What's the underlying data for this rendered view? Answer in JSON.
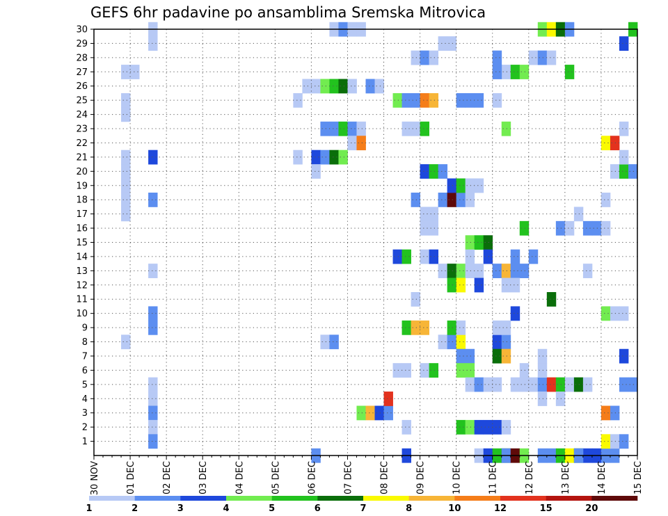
{
  "chart_data": {
    "type": "heatmap",
    "title": "GEFS 6hr padavine po ansamblima Sremska Mitrovica",
    "xlabel": "",
    "ylabel": "",
    "x_ticks": [
      "30 NOV",
      "01 DEC",
      "02 DEC",
      "03 DEC",
      "04 DEC",
      "05 DEC",
      "06 DEC",
      "07 DEC",
      "08 DEC",
      "09 DEC",
      "10 DEC",
      "11 DEC",
      "12 DEC",
      "13 DEC",
      "14 DEC",
      "15 DEC"
    ],
    "y_ticks": [
      "1",
      "2",
      "3",
      "4",
      "5",
      "6",
      "7",
      "8",
      "9",
      "10",
      "11",
      "12",
      "13",
      "14",
      "15",
      "16",
      "17",
      "18",
      "19",
      "20",
      "21",
      "22",
      "23",
      "24",
      "25",
      "26",
      "27",
      "28",
      "29",
      "30"
    ],
    "ylim": [
      0,
      30
    ],
    "xlim_days": [
      0,
      15
    ],
    "steps_per_day": 4,
    "color_levels": [
      "1",
      "2",
      "3",
      "4",
      "5",
      "6",
      "7",
      "8",
      "10",
      "12",
      "15",
      "20"
    ],
    "colors": [
      "#b7c9f5",
      "#5c8ef0",
      "#1e48dc",
      "#72ec50",
      "#22c21e",
      "#0a6e0a",
      "#fafa00",
      "#f7b537",
      "#f57d19",
      "#e3321e",
      "#b4140f",
      "#5f0a0a"
    ],
    "legend_placement": "bottom",
    "grid": true,
    "cells_note": "each cell: [time_step, member_row, level_index]",
    "cells": [
      [
        6,
        30,
        0
      ],
      [
        6,
        29,
        0
      ],
      [
        3,
        27,
        0
      ],
      [
        4,
        27,
        0
      ],
      [
        3,
        25,
        0
      ],
      [
        3,
        24,
        0
      ],
      [
        3,
        21,
        0
      ],
      [
        6,
        21,
        2
      ],
      [
        3,
        20,
        0
      ],
      [
        3,
        19,
        0
      ],
      [
        3,
        18,
        0
      ],
      [
        6,
        18,
        1
      ],
      [
        3,
        17,
        0
      ],
      [
        6,
        13,
        0
      ],
      [
        6,
        10,
        1
      ],
      [
        6,
        9,
        1
      ],
      [
        3,
        8,
        0
      ],
      [
        6,
        5,
        0
      ],
      [
        6,
        4,
        0
      ],
      [
        6,
        3,
        1
      ],
      [
        6,
        2,
        0
      ],
      [
        6,
        1,
        1
      ],
      [
        26,
        30,
        0
      ],
      [
        27,
        30,
        1
      ],
      [
        28,
        30,
        0
      ],
      [
        29,
        30,
        0
      ],
      [
        23,
        26,
        0
      ],
      [
        24,
        26,
        0
      ],
      [
        25,
        26,
        3
      ],
      [
        26,
        26,
        4
      ],
      [
        27,
        26,
        5
      ],
      [
        28,
        26,
        0
      ],
      [
        30,
        26,
        1
      ],
      [
        31,
        26,
        0
      ],
      [
        22,
        25,
        0
      ],
      [
        25,
        23,
        1
      ],
      [
        26,
        23,
        1
      ],
      [
        27,
        23,
        4
      ],
      [
        28,
        23,
        1
      ],
      [
        29,
        23,
        0
      ],
      [
        28,
        22,
        0
      ],
      [
        29,
        22,
        8
      ],
      [
        22,
        21,
        0
      ],
      [
        24,
        21,
        2
      ],
      [
        25,
        21,
        1
      ],
      [
        26,
        21,
        5
      ],
      [
        27,
        21,
        3
      ],
      [
        24,
        20,
        0
      ],
      [
        25,
        8,
        0
      ],
      [
        26,
        8,
        1
      ],
      [
        29,
        3,
        3
      ],
      [
        30,
        3,
        7
      ],
      [
        31,
        3,
        2
      ],
      [
        32,
        3,
        1
      ],
      [
        32,
        4,
        9
      ],
      [
        24,
        0,
        1
      ],
      [
        33,
        25,
        3
      ],
      [
        34,
        25,
        1
      ],
      [
        35,
        25,
        1
      ],
      [
        36,
        25,
        8
      ],
      [
        37,
        25,
        7
      ],
      [
        34,
        23,
        0
      ],
      [
        35,
        23,
        0
      ],
      [
        36,
        23,
        4
      ],
      [
        35,
        28,
        0
      ],
      [
        36,
        28,
        1
      ],
      [
        37,
        28,
        0
      ],
      [
        38,
        29,
        0
      ],
      [
        39,
        29,
        0
      ],
      [
        36,
        20,
        2
      ],
      [
        37,
        20,
        4
      ],
      [
        38,
        20,
        1
      ],
      [
        35,
        18,
        1
      ],
      [
        38,
        18,
        1
      ],
      [
        39,
        18,
        11
      ],
      [
        40,
        18,
        1
      ],
      [
        41,
        18,
        0
      ],
      [
        36,
        17,
        0
      ],
      [
        37,
        17,
        0
      ],
      [
        36,
        16,
        0
      ],
      [
        37,
        16,
        0
      ],
      [
        33,
        14,
        2
      ],
      [
        34,
        14,
        4
      ],
      [
        36,
        14,
        0
      ],
      [
        37,
        14,
        2
      ],
      [
        38,
        13,
        0
      ],
      [
        39,
        13,
        5
      ],
      [
        40,
        13,
        3
      ],
      [
        41,
        13,
        0
      ],
      [
        39,
        12,
        4
      ],
      [
        40,
        12,
        6
      ],
      [
        35,
        11,
        0
      ],
      [
        34,
        9,
        4
      ],
      [
        35,
        9,
        7
      ],
      [
        36,
        9,
        7
      ],
      [
        38,
        8,
        0
      ],
      [
        39,
        8,
        1
      ],
      [
        40,
        8,
        6
      ],
      [
        39,
        9,
        4
      ],
      [
        40,
        9,
        0
      ],
      [
        40,
        7,
        1
      ],
      [
        41,
        7,
        1
      ],
      [
        33,
        6,
        0
      ],
      [
        34,
        6,
        0
      ],
      [
        36,
        6,
        0
      ],
      [
        37,
        6,
        4
      ],
      [
        40,
        6,
        3
      ],
      [
        41,
        6,
        3
      ],
      [
        34,
        2,
        0
      ],
      [
        34,
        0,
        2
      ],
      [
        39,
        19,
        2
      ],
      [
        40,
        19,
        4
      ],
      [
        41,
        19,
        0
      ],
      [
        42,
        19,
        0
      ],
      [
        40,
        25,
        1
      ],
      [
        41,
        25,
        1
      ],
      [
        42,
        25,
        1
      ],
      [
        44,
        25,
        0
      ],
      [
        41,
        15,
        3
      ],
      [
        42,
        15,
        4
      ],
      [
        43,
        15,
        5
      ],
      [
        41,
        14,
        0
      ],
      [
        43,
        14,
        2
      ],
      [
        42,
        13,
        0
      ],
      [
        44,
        13,
        1
      ],
      [
        45,
        13,
        7
      ],
      [
        46,
        13,
        1
      ],
      [
        47,
        13,
        1
      ],
      [
        42,
        12,
        2
      ],
      [
        41,
        5,
        0
      ],
      [
        42,
        5,
        1
      ],
      [
        43,
        5,
        0
      ],
      [
        44,
        5,
        0
      ],
      [
        40,
        2,
        4
      ],
      [
        41,
        2,
        3
      ],
      [
        42,
        2,
        2
      ],
      [
        43,
        2,
        2
      ],
      [
        44,
        2,
        2
      ],
      [
        45,
        2,
        0
      ],
      [
        42,
        0,
        0
      ],
      [
        43,
        0,
        2
      ],
      [
        44,
        0,
        4
      ],
      [
        45,
        0,
        5
      ],
      [
        45,
        0,
        1
      ],
      [
        46,
        0,
        11
      ],
      [
        47,
        0,
        3
      ],
      [
        44,
        8,
        2
      ],
      [
        45,
        8,
        1
      ],
      [
        44,
        9,
        0
      ],
      [
        45,
        9,
        0
      ],
      [
        45,
        27,
        0
      ],
      [
        44,
        27,
        1
      ],
      [
        46,
        27,
        4
      ],
      [
        47,
        27,
        3
      ],
      [
        44,
        28,
        1
      ],
      [
        45,
        23,
        3
      ],
      [
        44,
        7,
        5
      ],
      [
        45,
        7,
        7
      ],
      [
        45,
        12,
        0
      ],
      [
        46,
        12,
        0
      ],
      [
        46,
        14,
        1
      ],
      [
        46,
        10,
        2
      ],
      [
        47,
        16,
        4
      ],
      [
        48,
        14,
        1
      ],
      [
        46,
        5,
        0
      ],
      [
        47,
        5,
        0
      ],
      [
        48,
        5,
        0
      ],
      [
        49,
        5,
        1
      ],
      [
        50,
        5,
        9
      ],
      [
        51,
        5,
        4
      ],
      [
        47,
        6,
        0
      ],
      [
        49,
        7,
        0
      ],
      [
        49,
        6,
        0
      ],
      [
        49,
        4,
        0
      ],
      [
        48,
        28,
        0
      ],
      [
        49,
        28,
        1
      ],
      [
        50,
        28,
        0
      ],
      [
        49,
        30,
        3
      ],
      [
        50,
        30,
        6
      ],
      [
        51,
        30,
        5
      ],
      [
        52,
        30,
        1
      ],
      [
        49,
        0,
        1
      ],
      [
        50,
        0,
        1
      ],
      [
        51,
        0,
        4
      ],
      [
        52,
        0,
        6
      ],
      [
        53,
        0,
        5
      ],
      [
        54,
        0,
        2
      ],
      [
        55,
        0,
        2
      ],
      [
        56,
        0,
        1
      ],
      [
        57,
        0,
        1
      ],
      [
        50,
        11,
        5
      ],
      [
        51,
        4,
        0
      ],
      [
        51,
        16,
        1
      ],
      [
        52,
        16,
        0
      ],
      [
        52,
        27,
        4
      ],
      [
        52,
        5,
        0
      ],
      [
        53,
        5,
        5
      ],
      [
        54,
        5,
        0
      ],
      [
        53,
        0,
        1
      ],
      [
        53,
        17,
        0
      ],
      [
        54,
        16,
        1
      ],
      [
        55,
        16,
        1
      ],
      [
        56,
        16,
        0
      ],
      [
        54,
        13,
        0
      ],
      [
        56,
        18,
        0
      ],
      [
        56,
        10,
        3
      ],
      [
        57,
        10,
        0
      ],
      [
        58,
        10,
        0
      ],
      [
        56,
        3,
        8
      ],
      [
        57,
        3,
        1
      ],
      [
        56,
        1,
        6
      ],
      [
        57,
        1,
        0
      ],
      [
        56,
        22,
        6
      ],
      [
        57,
        22,
        9
      ],
      [
        57,
        20,
        0
      ],
      [
        58,
        20,
        4
      ],
      [
        59,
        20,
        1
      ],
      [
        58,
        21,
        0
      ],
      [
        58,
        23,
        0
      ],
      [
        58,
        29,
        2
      ],
      [
        59,
        30,
        4
      ],
      [
        58,
        7,
        2
      ],
      [
        59,
        5,
        1
      ],
      [
        58,
        5,
        1
      ],
      [
        58,
        1,
        1
      ]
    ]
  }
}
